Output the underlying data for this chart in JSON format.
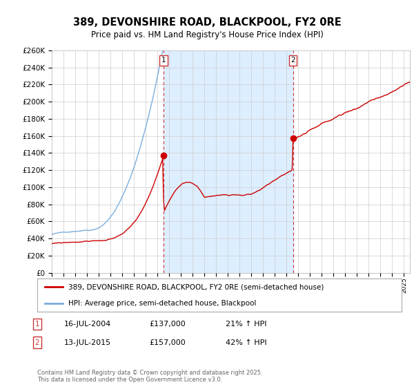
{
  "title": "389, DEVONSHIRE ROAD, BLACKPOOL, FY2 0RE",
  "subtitle": "Price paid vs. HM Land Registry's House Price Index (HPI)",
  "ylim": [
    0,
    260000
  ],
  "yticks": [
    0,
    20000,
    40000,
    60000,
    80000,
    100000,
    120000,
    140000,
    160000,
    180000,
    200000,
    220000,
    240000,
    260000
  ],
  "xlim_start": 1995.0,
  "xlim_end": 2025.5,
  "transaction1_x": 2004.54,
  "transaction1_y": 137000,
  "transaction2_x": 2015.54,
  "transaction2_y": 157000,
  "red_line_color": "#cc0000",
  "blue_line_color": "#7aaddc",
  "shade_color": "#ddeeff",
  "vline_color": "#cc3333",
  "grid_color": "#cccccc",
  "background_color": "#ffffff",
  "legend_line1": "389, DEVONSHIRE ROAD, BLACKPOOL, FY2 0RE (semi-detached house)",
  "legend_line2": "HPI: Average price, semi-detached house, Blackpool",
  "annotation1_date": "16-JUL-2004",
  "annotation1_price": "£137,000",
  "annotation1_hpi": "21% ↑ HPI",
  "annotation2_date": "13-JUL-2015",
  "annotation2_price": "£157,000",
  "annotation2_hpi": "42% ↑ HPI",
  "footer": "Contains HM Land Registry data © Crown copyright and database right 2025.\nThis data is licensed under the Open Government Licence v3.0."
}
